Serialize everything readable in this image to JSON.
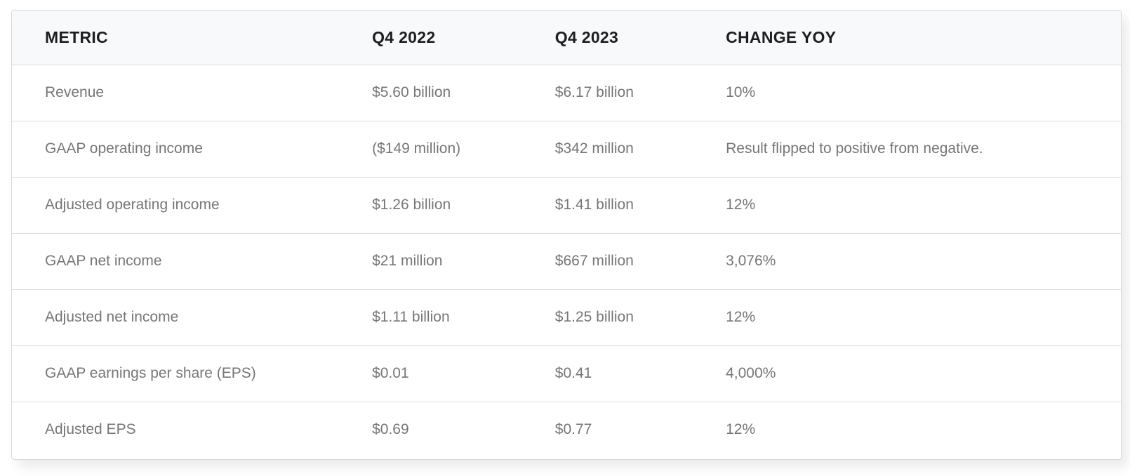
{
  "chart_data": {
    "type": "table",
    "columns": [
      "METRIC",
      "Q4 2022",
      "Q4 2023",
      "CHANGE YOY"
    ],
    "rows": [
      [
        "Revenue",
        "$5.60 billion",
        "$6.17 billion",
        "10%"
      ],
      [
        "GAAP operating income",
        "($149 million)",
        "$342 million",
        "Result flipped to positive from negative."
      ],
      [
        "Adjusted operating income",
        "$1.26 billion",
        "$1.41 billion",
        "12%"
      ],
      [
        "GAAP net income",
        "$21 million",
        "$667 million",
        "3,076%"
      ],
      [
        "Adjusted net income",
        "$1.11 billion",
        "$1.25 billion",
        "12%"
      ],
      [
        "GAAP earnings per share (EPS)",
        "$0.01",
        "$0.41",
        "4,000%"
      ],
      [
        "Adjusted EPS",
        "$0.69",
        "$0.77",
        "12%"
      ]
    ],
    "title": "",
    "layout_hints": {
      "header_row_shaded": true,
      "horizontal_dividers_only": true,
      "text_align": "left"
    }
  },
  "colors": {
    "page_background": "#ffffff",
    "card_background": "#ffffff",
    "card_border": "#d9d9d9",
    "header_background": "#f8f9fa",
    "header_text": "#1d1e20",
    "body_text": "#757678",
    "row_divider": "#dedede"
  }
}
